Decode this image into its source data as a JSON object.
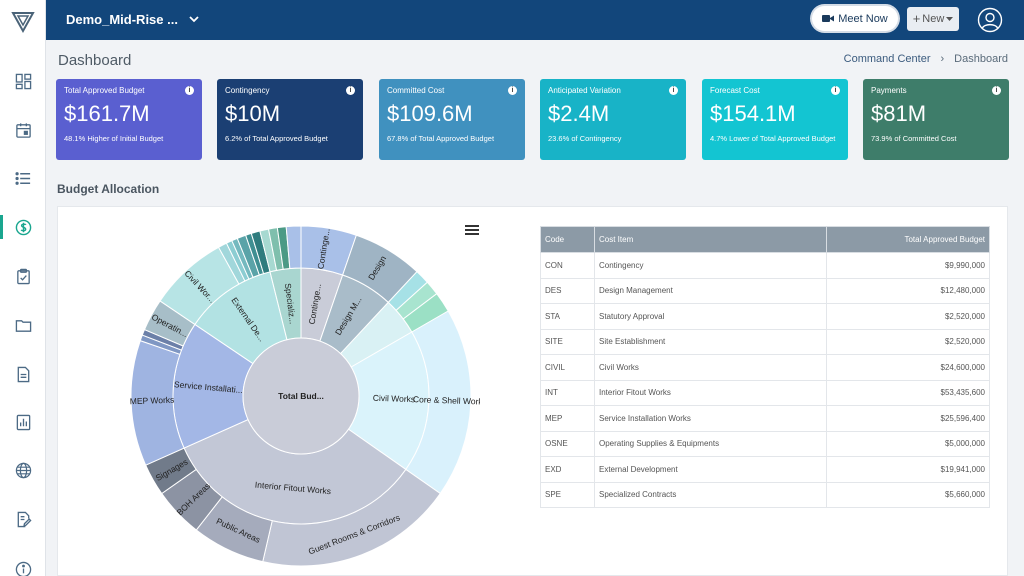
{
  "topbar": {
    "project_name": "Demo_Mid-Rise ...",
    "meet_label": "Meet Now",
    "new_label": "New"
  },
  "sidebar": {
    "items": [
      {
        "icon": "dashboard-icon"
      },
      {
        "icon": "calendar-icon"
      },
      {
        "icon": "list-icon"
      },
      {
        "icon": "dollar-icon",
        "active": true
      },
      {
        "icon": "clipboard-check-icon"
      },
      {
        "icon": "folder-icon"
      },
      {
        "icon": "document-icon"
      },
      {
        "icon": "bar-report-icon"
      },
      {
        "icon": "globe-icon"
      },
      {
        "icon": "edit-document-icon"
      },
      {
        "icon": "info-icon"
      }
    ]
  },
  "header": {
    "title": "Dashboard",
    "breadcrumb": [
      "Command Center",
      "Dashboard"
    ]
  },
  "cards": [
    {
      "title": "Total Approved Budget",
      "value": "$161.7M",
      "sub": "48.1% Higher of Initial Budget",
      "color": "#5a5fd0"
    },
    {
      "title": "Contingency",
      "value": "$10M",
      "sub": "6.2% of Total Approved Budget",
      "color": "#1b3f73"
    },
    {
      "title": "Committed Cost",
      "value": "$109.6M",
      "sub": "67.8% of Total Approved Budget",
      "color": "#4091bf"
    },
    {
      "title": "Anticipated Variation",
      "value": "$2.4M",
      "sub": "23.6% of Contingency",
      "color": "#18b3c7"
    },
    {
      "title": "Forecast Cost",
      "value": "$154.1M",
      "sub": "4.7% Lower of Total Approved Budget",
      "color": "#13c5d2"
    },
    {
      "title": "Payments",
      "value": "$81M",
      "sub": "73.9% of Committed Cost",
      "color": "#3e7d6a"
    }
  ],
  "section": {
    "title": "Budget Allocation"
  },
  "sunburst": {
    "center_label": "Total Bud...",
    "inner_labels": [
      "Civil Works",
      "Interior Fitout Works",
      "Service Installati...",
      "External De...",
      "Specializ...",
      "Continge...",
      "Design M..."
    ],
    "outer_labels": [
      "Continge...",
      "Design",
      "Core & Shell Works",
      "Guest Rooms & Corridors",
      "Public Areas",
      "BOH Areas",
      "Signages",
      "MEP Works",
      "Operatin...",
      "Civil Wor..."
    ]
  },
  "table": {
    "headers": [
      "Code",
      "Cost Item",
      "Total Approved Budget"
    ],
    "rows": [
      [
        "CON",
        "Contingency",
        "$9,990,000"
      ],
      [
        "DES",
        "Design Management",
        "$12,480,000"
      ],
      [
        "STA",
        "Statutory Approval",
        "$2,520,000"
      ],
      [
        "SITE",
        "Site Establishment",
        "$2,520,000"
      ],
      [
        "CIVIL",
        "Civil Works",
        "$24,600,000"
      ],
      [
        "INT",
        "Interior Fitout Works",
        "$53,435,600"
      ],
      [
        "MEP",
        "Service Installation Works",
        "$25,596,400"
      ],
      [
        "OSNE",
        "Operating Supplies & Equipments",
        "$5,000,000"
      ],
      [
        "EXD",
        "External Development",
        "$19,941,000"
      ],
      [
        "SPE",
        "Specialized Contracts",
        "$5,660,000"
      ]
    ]
  }
}
